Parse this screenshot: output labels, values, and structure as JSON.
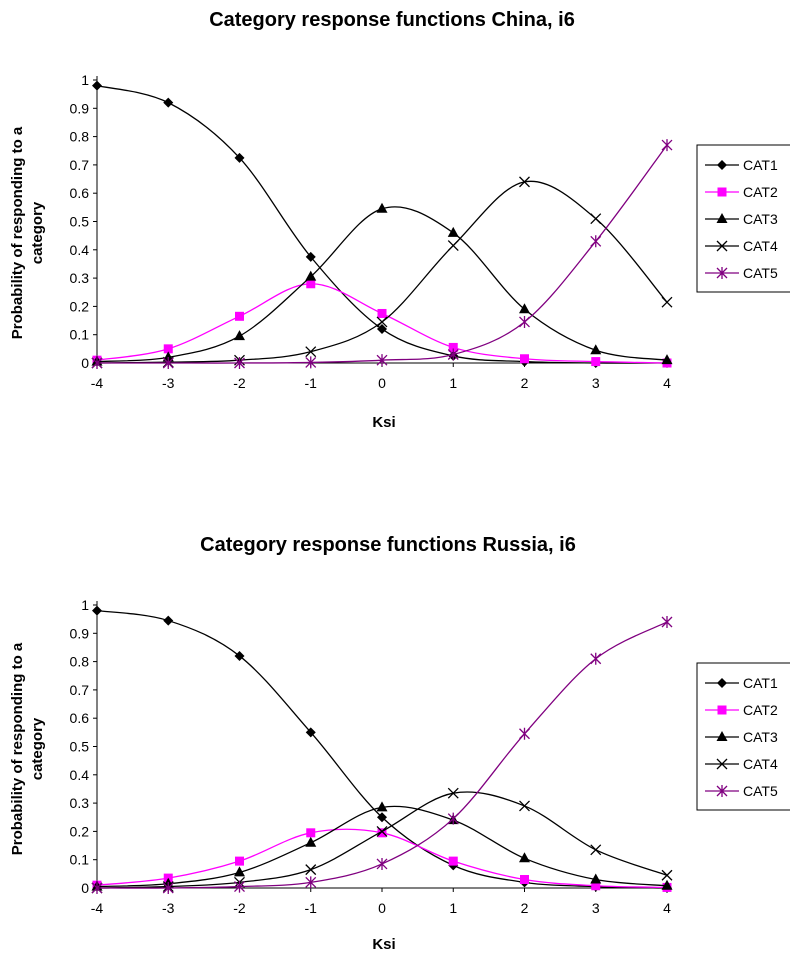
{
  "chart_data": [
    {
      "type": "line",
      "title": "Category response functions China, i6",
      "xlabel": "Ksi",
      "ylabel_lines": [
        "Probability of responding to a",
        "category"
      ],
      "x": [
        -4,
        -3,
        -2,
        -1,
        0,
        1,
        2,
        3,
        4
      ],
      "xlim": [
        -4,
        4
      ],
      "ylim": [
        0,
        1
      ],
      "yticks": [
        "0",
        "0.1",
        "0.2",
        "0.3",
        "0.4",
        "0.5",
        "0.6",
        "0.7",
        "0.8",
        "0.9",
        "1"
      ],
      "grid": false,
      "legend": "right",
      "series": [
        {
          "name": "CAT1",
          "marker": "diamond",
          "color": "#000000",
          "values": [
            0.98,
            0.92,
            0.725,
            0.375,
            0.12,
            0.025,
            0.005,
            0.0,
            0.0
          ]
        },
        {
          "name": "CAT2",
          "marker": "square",
          "color": "#ff00ff",
          "values": [
            0.01,
            0.05,
            0.165,
            0.28,
            0.175,
            0.055,
            0.015,
            0.005,
            0.0
          ]
        },
        {
          "name": "CAT3",
          "marker": "triangle",
          "color": "#000000",
          "values": [
            0.005,
            0.02,
            0.095,
            0.305,
            0.545,
            0.46,
            0.19,
            0.045,
            0.01
          ]
        },
        {
          "name": "CAT4",
          "marker": "x",
          "color": "#000000",
          "values": [
            0.0,
            0.003,
            0.01,
            0.04,
            0.145,
            0.415,
            0.64,
            0.51,
            0.215
          ]
        },
        {
          "name": "CAT5",
          "marker": "star",
          "color": "#800080",
          "values": [
            0.0,
            0.0,
            0.0,
            0.002,
            0.01,
            0.03,
            0.145,
            0.43,
            0.77
          ]
        }
      ]
    },
    {
      "type": "line",
      "title": "Category response functions Russia, i6",
      "xlabel": "Ksi",
      "ylabel_lines": [
        "Probability of responding to a",
        "category"
      ],
      "x": [
        -4,
        -3,
        -2,
        -1,
        0,
        1,
        2,
        3,
        4
      ],
      "xlim": [
        -4,
        4
      ],
      "ylim": [
        0,
        1
      ],
      "yticks": [
        "0",
        "0.1",
        "0.2",
        "0.3",
        "0.4",
        "0.5",
        "0.6",
        "0.7",
        "0.8",
        "0.9",
        "1"
      ],
      "grid": false,
      "legend": "right",
      "series": [
        {
          "name": "CAT1",
          "marker": "diamond",
          "color": "#000000",
          "values": [
            0.98,
            0.945,
            0.82,
            0.55,
            0.25,
            0.08,
            0.02,
            0.005,
            0.0
          ]
        },
        {
          "name": "CAT2",
          "marker": "square",
          "color": "#ff00ff",
          "values": [
            0.01,
            0.035,
            0.095,
            0.195,
            0.195,
            0.095,
            0.03,
            0.008,
            0.002
          ]
        },
        {
          "name": "CAT3",
          "marker": "triangle",
          "color": "#000000",
          "values": [
            0.005,
            0.015,
            0.055,
            0.16,
            0.285,
            0.24,
            0.105,
            0.03,
            0.008
          ]
        },
        {
          "name": "CAT4",
          "marker": "x",
          "color": "#000000",
          "values": [
            0.0,
            0.005,
            0.02,
            0.065,
            0.2,
            0.335,
            0.29,
            0.135,
            0.045
          ]
        },
        {
          "name": "CAT5",
          "marker": "star",
          "color": "#800080",
          "values": [
            0.0,
            0.0,
            0.005,
            0.02,
            0.085,
            0.245,
            0.545,
            0.81,
            0.94
          ]
        }
      ]
    }
  ]
}
